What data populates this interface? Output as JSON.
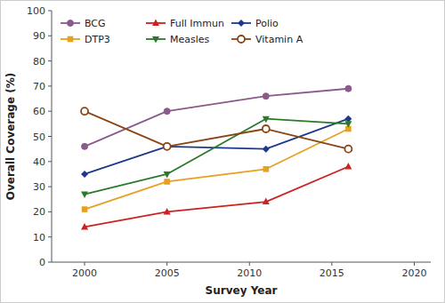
{
  "chart_data": {
    "type": "line",
    "xlabel": "Survey Year",
    "ylabel": "Overall Coverage (%)",
    "x": [
      2000,
      2005,
      2011,
      2016
    ],
    "series": [
      {
        "name": "BCG",
        "color": "#8B5A8B",
        "marker": "circle",
        "values": [
          46,
          60,
          66,
          69
        ]
      },
      {
        "name": "Full Immun",
        "color": "#CC2222",
        "marker": "triangle-up",
        "values": [
          14,
          20,
          24,
          38
        ]
      },
      {
        "name": "Polio",
        "color": "#1B3A8C",
        "marker": "diamond",
        "values": [
          35,
          46,
          45,
          57
        ]
      },
      {
        "name": "DTP3",
        "color": "#E8A020",
        "marker": "square",
        "values": [
          21,
          32,
          37,
          53
        ]
      },
      {
        "name": "Measles",
        "color": "#2A7A2A",
        "marker": "triangle-down",
        "values": [
          27,
          35,
          57,
          55
        ]
      },
      {
        "name": "Vitamin A",
        "color": "#8B4513",
        "marker": "circle-open",
        "values": [
          60,
          46,
          53,
          45
        ]
      }
    ],
    "xlim": [
      1998,
      2021
    ],
    "ylim": [
      0,
      100
    ],
    "xticks": [
      2000,
      2005,
      2010,
      2015,
      2020
    ],
    "yticks": [
      0,
      10,
      20,
      30,
      40,
      50,
      60,
      70,
      80,
      90,
      100
    ],
    "grid": false,
    "legend": "upper left"
  }
}
